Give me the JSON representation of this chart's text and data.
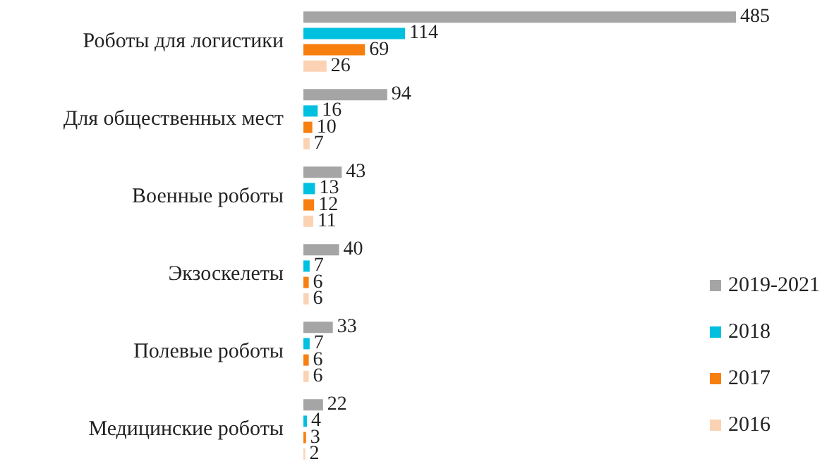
{
  "chart_data": {
    "type": "bar",
    "orientation": "horizontal",
    "data_labels": true,
    "legend": "bottom right",
    "categories": [
      "Роботы для логистики",
      "Для общественных мест",
      "Военные роботы",
      "Экзоскелеты",
      "Полевые роботы",
      "Медицинские роботы"
    ],
    "series": [
      {
        "name": "2019-2021",
        "color": "#a5a5a5",
        "values": [
          485,
          94,
          43,
          40,
          33,
          22
        ]
      },
      {
        "name": "2018",
        "color": "#00c0e0",
        "values": [
          114,
          16,
          13,
          7,
          7,
          4
        ]
      },
      {
        "name": "2017",
        "color": "#f77f0f",
        "values": [
          69,
          10,
          12,
          6,
          6,
          3
        ]
      },
      {
        "name": "2016",
        "color": "#fbd3b4",
        "values": [
          26,
          7,
          11,
          6,
          6,
          2
        ]
      }
    ]
  }
}
